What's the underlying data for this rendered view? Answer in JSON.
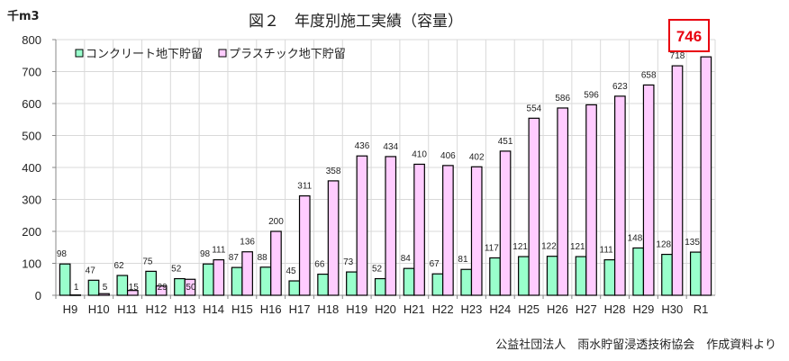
{
  "chart_data": {
    "type": "bar",
    "title": "図２　年度別施工実績（容量）",
    "ylabel": "千m3",
    "xlabel": "",
    "ylim": [
      0,
      800
    ],
    "yticks": [
      0,
      100,
      200,
      300,
      400,
      500,
      600,
      700,
      800
    ],
    "grid": true,
    "legend_position": "top-left",
    "categories": [
      "H9",
      "H10",
      "H11",
      "H12",
      "H13",
      "H14",
      "H15",
      "H16",
      "H17",
      "H18",
      "H19",
      "H20",
      "H21",
      "H22",
      "H23",
      "H24",
      "H25",
      "H26",
      "H27",
      "H28",
      "H29",
      "H30",
      "R1"
    ],
    "series": [
      {
        "name": "コンクリート地下貯留",
        "color": "#99ffcc",
        "values": [
          98,
          47,
          62,
          75,
          52,
          98,
          87,
          88,
          45,
          66,
          73,
          52,
          84,
          67,
          81,
          117,
          121,
          122,
          121,
          111,
          148,
          128,
          135
        ]
      },
      {
        "name": "プラスチック地下貯留",
        "color": "#ffccff",
        "values": [
          1,
          5,
          15,
          29,
          50,
          111,
          136,
          200,
          311,
          358,
          436,
          434,
          410,
          406,
          402,
          451,
          554,
          586,
          596,
          623,
          658,
          718,
          746
        ]
      }
    ],
    "highlight": {
      "label": "746",
      "color": "#e8000f",
      "category": "R1",
      "series": "プラスチック地下貯留"
    }
  },
  "source_note": "公益社団法人　雨水貯留浸透技術協会　作成資料より"
}
